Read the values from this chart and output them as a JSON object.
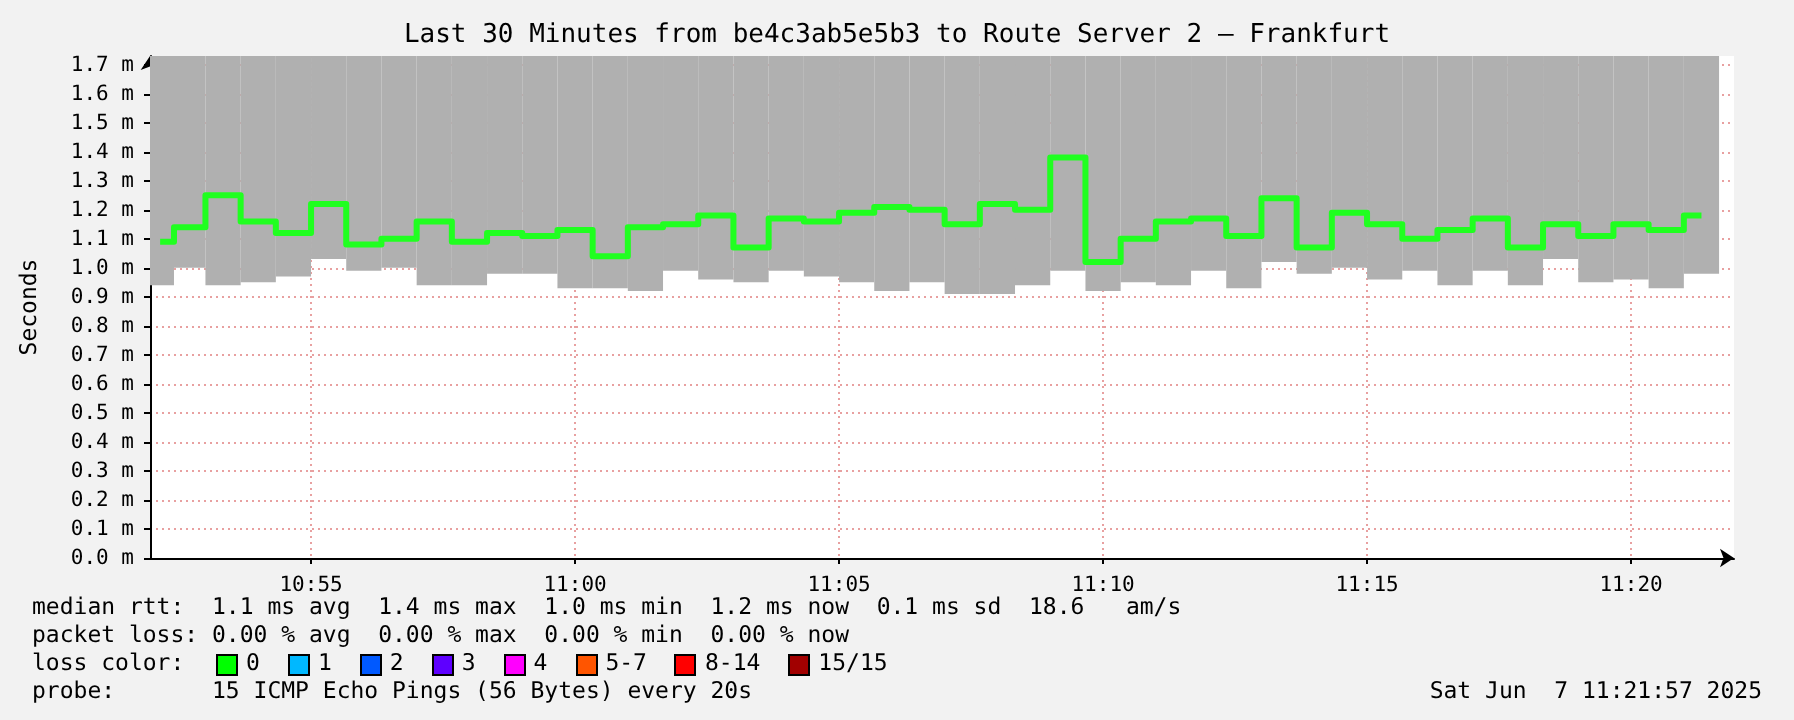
{
  "chart_data": {
    "type": "step",
    "title": "Last 30 Minutes from be4c3ab5e5b3 to Route Server 2 – Frankfurt",
    "ylabel": "Seconds",
    "annotations": [
      "median rtt:  1.1 ms avg  1.4 ms max  1.0 ms min  1.2 ms now  0.1 ms sd  18.6   am/s",
      "packet loss: 0.00 % avg  0.00 % max  0.00 % min  0.00 % now",
      "loss color:",
      "0",
      "1",
      "2",
      "3",
      "4",
      "5-7",
      "8-14",
      "15/15",
      "probe:       15 ICMP Echo Pings (56 Bytes) every 20s",
      "Sat Jun  7 11:21:57 2025"
    ],
    "x": [
      10.86903,
      10.87778,
      10.88889,
      10.9,
      10.91111,
      10.92222,
      10.93333,
      10.94444,
      10.95556,
      10.96667,
      10.97778,
      10.98889,
      11.0,
      11.01111,
      11.02222,
      11.03333,
      11.04444,
      11.05556,
      11.06667,
      11.07778,
      11.08889,
      11.1,
      11.11111,
      11.12222,
      11.13333,
      11.14444,
      11.15556,
      11.16667,
      11.17778,
      11.18889,
      11.2,
      11.21111,
      11.22222,
      11.23333,
      11.24444,
      11.25556,
      11.26667,
      11.27778,
      11.28889,
      11.3,
      11.31111,
      11.32222,
      11.33333,
      11.34444,
      11.35556
    ],
    "series": [
      {
        "type": "bar",
        "color": "#b0b0b0",
        "base": [
          0.94,
          1.0,
          0.94,
          0.95,
          0.97,
          1.03,
          0.99,
          1.0,
          0.94,
          0.94,
          0.98,
          0.98,
          0.93,
          0.93,
          0.92,
          0.99,
          0.96,
          0.95,
          0.99,
          0.97,
          0.95,
          0.92,
          0.95,
          0.91,
          0.91,
          0.94,
          0.99,
          0.92,
          0.95,
          0.94,
          0.99,
          0.93,
          1.02,
          0.98,
          1.0,
          0.96,
          0.99,
          0.94,
          0.99,
          0.94,
          1.03,
          0.95,
          0.96,
          0.93,
          0.98
        ],
        "values": [
          0.79,
          0.73,
          0.79,
          0.78,
          0.76,
          0.7,
          0.74,
          0.73,
          0.79,
          0.79,
          0.75,
          0.75,
          0.8,
          0.8,
          0.81,
          0.74,
          0.77,
          0.78,
          0.74,
          0.76,
          0.78,
          0.81,
          0.78,
          0.82,
          0.82,
          0.79,
          0.74,
          0.81,
          0.78,
          0.79,
          0.74,
          0.8,
          0.71,
          0.75,
          0.73,
          0.77,
          0.74,
          0.79,
          0.74,
          0.79,
          0.7,
          0.78,
          0.77,
          0.8,
          0.75
        ]
      },
      {
        "color": "#20ff20",
        "values": [
          1.09,
          1.14,
          1.25,
          1.16,
          1.12,
          1.22,
          1.08,
          1.1,
          1.16,
          1.09,
          1.12,
          1.11,
          1.13,
          1.04,
          1.14,
          1.15,
          1.18,
          1.07,
          1.17,
          1.16,
          1.19,
          1.21,
          1.2,
          1.15,
          1.22,
          1.2,
          1.38,
          1.02,
          1.1,
          1.16,
          1.17,
          1.11,
          1.24,
          1.07,
          1.19,
          1.15,
          1.1,
          1.13,
          1.17,
          1.07,
          1.15,
          1.11,
          1.15,
          1.13,
          1.18
        ]
      }
    ],
    "xlim": [
      10.865833,
      11.365833
    ],
    "xticks": [
      {
        "value": 10.916667,
        "label": "10:55"
      },
      {
        "value": 11,
        "label": "11:00"
      },
      {
        "value": 11.083333,
        "label": "11:05"
      },
      {
        "value": 11.166667,
        "label": "11:10"
      },
      {
        "value": 11.25,
        "label": "11:15"
      },
      {
        "value": 11.333333,
        "label": "11:20"
      }
    ],
    "ylim": [
      0,
      1.73
    ],
    "yticks": [
      {
        "value": 0,
        "label": "0.0 m"
      },
      {
        "value": 0.1,
        "label": "0.1 m"
      },
      {
        "value": 0.2,
        "label": "0.2 m"
      },
      {
        "value": 0.3,
        "label": "0.3 m"
      },
      {
        "value": 0.4,
        "label": "0.4 m"
      },
      {
        "value": 0.5,
        "label": "0.5 m"
      },
      {
        "value": 0.6,
        "label": "0.6 m"
      },
      {
        "value": 0.7,
        "label": "0.7 m"
      },
      {
        "value": 0.8,
        "label": "0.8 m"
      },
      {
        "value": 0.9,
        "label": "0.9 m"
      },
      {
        "value": 1.0,
        "label": "1.0 m"
      },
      {
        "value": 1.1,
        "label": "1.1 m"
      },
      {
        "value": 1.2,
        "label": "1.2 m"
      },
      {
        "value": 1.3,
        "label": "1.3 m"
      },
      {
        "value": 1.4,
        "label": "1.4 m"
      },
      {
        "value": 1.5,
        "label": "1.5 m"
      },
      {
        "value": 1.6,
        "label": "1.6 m"
      },
      {
        "value": 1.7,
        "label": "1.7 m"
      }
    ],
    "grid": true,
    "marker": "none"
  }
}
